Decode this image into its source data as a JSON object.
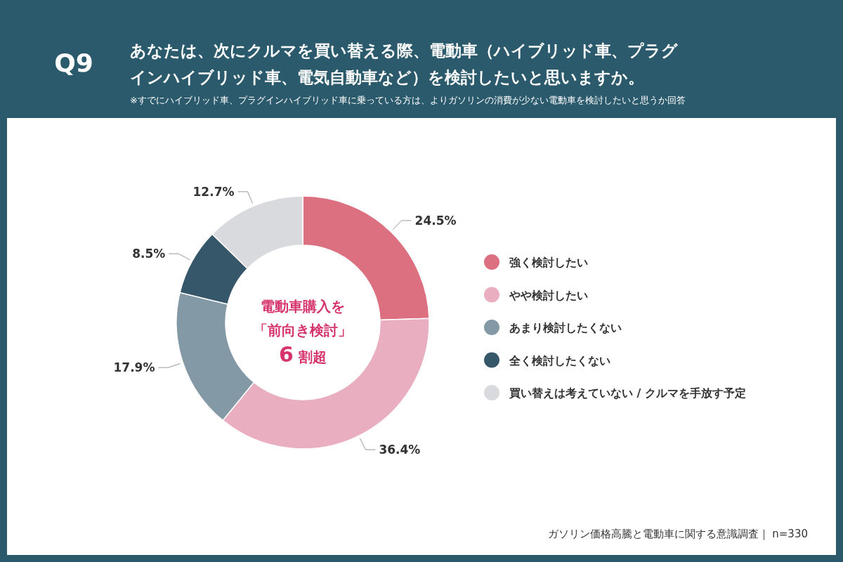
{
  "chart_data": {
    "type": "donut",
    "title": "あなたは、次にクルマを買い替える際、電動車（ハイブリッド車、プラグインハイブリッド車、電気自動車など）を検討したいと思いますか。",
    "subtitle": "※すでにハイブリッド車、プラグインハイブリッド車に乗っている方は、よりガソリンの消費が少ない電動車を検討したいと思うか回答",
    "categories": [
      "強く検討したい",
      "やや検討したい",
      "あまり検討したくない",
      "全く検討したくない",
      "買い替えは考えていない / クルマを手放す予定"
    ],
    "values": [
      24.5,
      36.4,
      17.9,
      8.5,
      12.7
    ],
    "colors": [
      "#dc7080",
      "#e9aec0",
      "#8399a6",
      "#36576a",
      "#d9dadd"
    ],
    "value_labels": [
      "24.5%",
      "36.4%",
      "17.9%",
      "8.5%",
      "12.7%"
    ],
    "legend": "right",
    "annotations": [
      "Q9",
      "電動車購入を",
      "「前向き検討」",
      "6 割超",
      "ガソリン価格高騰と電動車に関する意識調査｜ n=330"
    ]
  }
}
